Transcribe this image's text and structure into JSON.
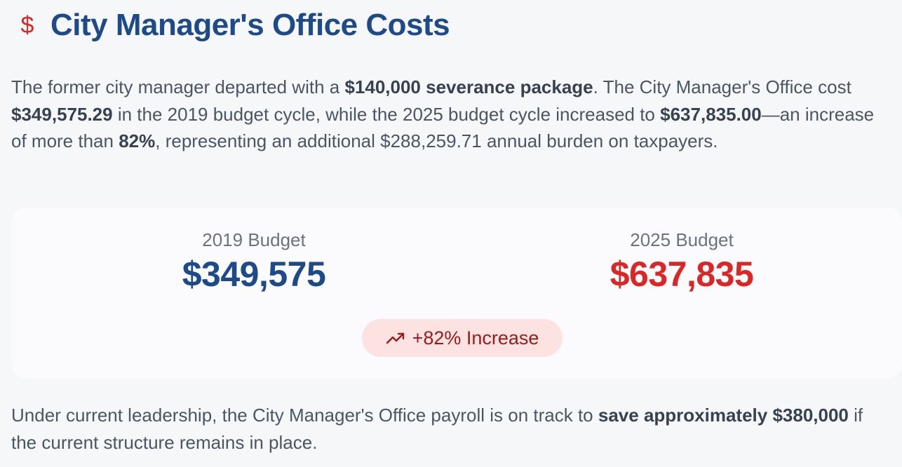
{
  "header": {
    "icon": "dollar-sign-icon",
    "icon_glyph": "$",
    "title": "City Manager's Office Costs"
  },
  "intro": {
    "t1": "The former city manager departed with a ",
    "b1": "$140,000 severance package",
    "t2": ". The City Manager's Office cost ",
    "b2": "$349,575.29",
    "t3": " in the 2019 budget cycle, while the 2025 budget cycle increased to ",
    "b3": "$637,835.00",
    "t4": "—an increase of more than ",
    "b4": "82%",
    "t5": ", representing an additional $288,259.71 annual burden on taxpayers."
  },
  "comparison": {
    "left": {
      "label": "2019 Budget",
      "value": "$349,575"
    },
    "right": {
      "label": "2025 Budget",
      "value": "$637,835"
    },
    "badge": {
      "icon": "trending-up-icon",
      "text": "+82% Increase"
    }
  },
  "outro": {
    "t1": "Under current leadership, the City Manager's Office payroll is on track to ",
    "b1": "save approximately $380,000",
    "t2": " if the current structure remains in place."
  },
  "colors": {
    "title_blue": "#1e4a8a",
    "accent_red": "#dc2626",
    "badge_bg": "#fde2e2",
    "badge_text": "#991b1b"
  }
}
